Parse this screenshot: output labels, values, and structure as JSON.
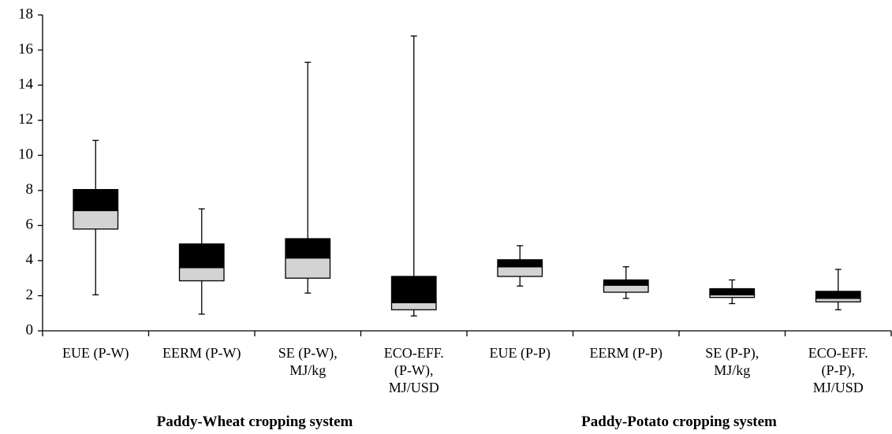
{
  "chart_data": {
    "type": "box",
    "categories": [
      "EUE (P-W)",
      "EERM (P-W)",
      "SE (P-W),\nMJ/kg",
      "ECO-EFF.\n(P-W),\nMJ/USD",
      "EUE (P-P)",
      "EERM (P-P)",
      "SE (P-P),\nMJ/kg",
      "ECO-EFF.\n(P-P),\nMJ/USD"
    ],
    "groups": [
      {
        "label": "Paddy-Wheat cropping system",
        "span": 4
      },
      {
        "label": "Paddy-Potato cropping system",
        "span": 4
      }
    ],
    "boxes": [
      {
        "min": 2.05,
        "q1": 5.8,
        "median": 6.85,
        "q3": 8.05,
        "max": 10.85
      },
      {
        "min": 0.95,
        "q1": 2.85,
        "median": 3.6,
        "q3": 4.95,
        "max": 6.95
      },
      {
        "min": 2.15,
        "q1": 3.0,
        "median": 4.15,
        "q3": 5.25,
        "max": 15.3
      },
      {
        "min": 0.85,
        "q1": 1.2,
        "median": 1.6,
        "q3": 3.1,
        "max": 16.8
      },
      {
        "min": 2.55,
        "q1": 3.1,
        "median": 3.65,
        "q3": 4.05,
        "max": 4.85
      },
      {
        "min": 1.85,
        "q1": 2.2,
        "median": 2.6,
        "q3": 2.9,
        "max": 3.65
      },
      {
        "min": 1.55,
        "q1": 1.9,
        "median": 2.05,
        "q3": 2.4,
        "max": 2.9
      },
      {
        "min": 1.2,
        "q1": 1.65,
        "median": 1.85,
        "q3": 2.25,
        "max": 3.5
      }
    ],
    "lower_color": "#d3d3d3",
    "upper_color": "#000000",
    "ylim": [
      0,
      18
    ],
    "yticks": [
      0,
      2,
      4,
      6,
      8,
      10,
      12,
      14,
      16,
      18
    ],
    "grid": false
  }
}
